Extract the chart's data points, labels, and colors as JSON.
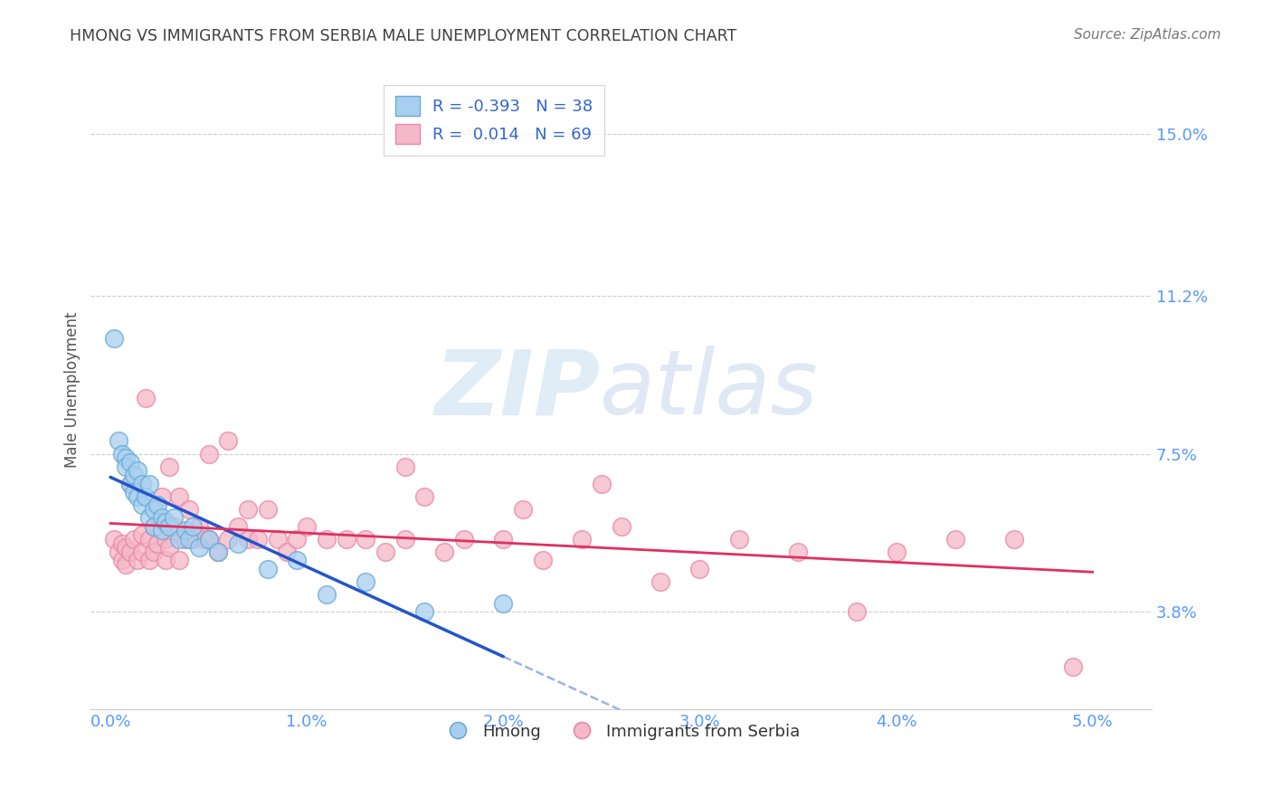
{
  "title": "HMONG VS IMMIGRANTS FROM SERBIA MALE UNEMPLOYMENT CORRELATION CHART",
  "source": "Source: ZipAtlas.com",
  "ylabel": "Male Unemployment",
  "x_tick_vals": [
    0.0,
    1.0,
    2.0,
    3.0,
    4.0,
    5.0
  ],
  "y_tick_vals": [
    3.8,
    7.5,
    11.2,
    15.0
  ],
  "xlim": [
    -0.1,
    5.3
  ],
  "ylim": [
    1.5,
    16.5
  ],
  "hmong_color": "#a8cff0",
  "serbia_color": "#f5b8c8",
  "hmong_edge": "#6aaad4",
  "serbia_edge": "#e888a8",
  "trend_hmong_color": "#2255cc",
  "trend_serbia_color": "#e03060",
  "R_hmong": -0.393,
  "N_hmong": 38,
  "R_serbia": 0.014,
  "N_serbia": 69,
  "legend_labels": [
    "Hmong",
    "Immigrants from Serbia"
  ],
  "background_color": "#ffffff",
  "grid_color": "#cccccc",
  "title_color": "#404040",
  "axis_label_color": "#5599ff",
  "hmong_x": [
    0.02,
    0.04,
    0.06,
    0.08,
    0.08,
    0.1,
    0.1,
    0.12,
    0.12,
    0.14,
    0.14,
    0.16,
    0.16,
    0.18,
    0.2,
    0.2,
    0.22,
    0.22,
    0.24,
    0.26,
    0.26,
    0.28,
    0.3,
    0.32,
    0.35,
    0.38,
    0.4,
    0.42,
    0.45,
    0.5,
    0.55,
    0.65,
    0.8,
    0.95,
    1.1,
    1.3,
    1.6,
    2.0
  ],
  "hmong_y": [
    10.2,
    7.8,
    7.5,
    7.4,
    7.2,
    7.3,
    6.8,
    7.0,
    6.6,
    7.1,
    6.5,
    6.8,
    6.3,
    6.5,
    6.8,
    6.0,
    6.2,
    5.8,
    6.3,
    6.0,
    5.7,
    5.9,
    5.8,
    6.0,
    5.5,
    5.7,
    5.5,
    5.8,
    5.3,
    5.5,
    5.2,
    5.4,
    4.8,
    5.0,
    4.2,
    4.5,
    3.8,
    4.0
  ],
  "serbia_x": [
    0.02,
    0.04,
    0.06,
    0.06,
    0.08,
    0.08,
    0.1,
    0.1,
    0.12,
    0.14,
    0.16,
    0.16,
    0.18,
    0.2,
    0.2,
    0.22,
    0.22,
    0.24,
    0.26,
    0.28,
    0.28,
    0.3,
    0.3,
    0.32,
    0.35,
    0.35,
    0.38,
    0.4,
    0.42,
    0.45,
    0.48,
    0.5,
    0.55,
    0.6,
    0.65,
    0.7,
    0.75,
    0.8,
    0.85,
    0.9,
    0.95,
    1.0,
    1.1,
    1.2,
    1.3,
    1.4,
    1.5,
    1.6,
    1.7,
    1.8,
    2.0,
    2.1,
    2.2,
    2.4,
    2.6,
    2.8,
    3.0,
    3.2,
    3.5,
    3.8,
    4.0,
    4.3,
    4.6,
    4.9,
    0.5,
    0.6,
    0.7,
    1.5,
    2.5
  ],
  "serbia_y": [
    5.5,
    5.2,
    5.4,
    5.0,
    5.3,
    4.9,
    6.8,
    5.2,
    5.5,
    5.0,
    5.6,
    5.2,
    8.8,
    5.5,
    5.0,
    5.8,
    5.2,
    5.4,
    6.5,
    5.5,
    5.0,
    5.3,
    7.2,
    5.8,
    6.5,
    5.0,
    5.5,
    6.2,
    5.5,
    5.8,
    5.5,
    5.5,
    5.2,
    5.5,
    5.8,
    5.5,
    5.5,
    6.2,
    5.5,
    5.2,
    5.5,
    5.8,
    5.5,
    5.5,
    5.5,
    5.2,
    5.5,
    6.5,
    5.2,
    5.5,
    5.5,
    6.2,
    5.0,
    5.5,
    5.8,
    4.5,
    4.8,
    5.5,
    5.2,
    3.8,
    5.2,
    5.5,
    5.5,
    2.5,
    7.5,
    7.8,
    6.2,
    7.2,
    6.8
  ],
  "hmong_solid_end": 2.0,
  "serbia_trend_intercept_x0": 0.0,
  "watermark_text": "ZIPatlas"
}
